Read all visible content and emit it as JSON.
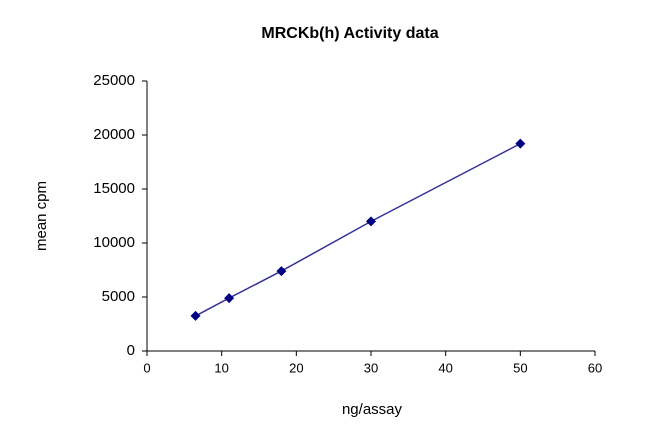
{
  "chart_data": {
    "type": "line",
    "title": "MRCKb(h) Activity data",
    "x_label": "ng/assay",
    "y_label": "mean cpm",
    "x": [
      6.5,
      11,
      18,
      30,
      50
    ],
    "values": [
      3250,
      4900,
      7400,
      12000,
      19200
    ],
    "color": "#000080",
    "line_color": "#333399",
    "xlim": [
      0,
      60
    ],
    "xticks": [
      0,
      10,
      20,
      30,
      40,
      50,
      60
    ],
    "ylim": [
      0,
      25000
    ],
    "yticks": [
      0,
      5000,
      10000,
      15000,
      20000,
      25000
    ],
    "grid": false
  }
}
